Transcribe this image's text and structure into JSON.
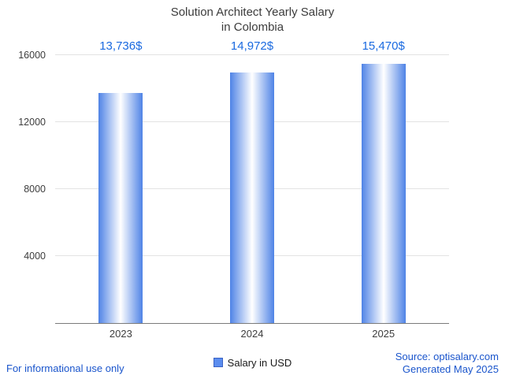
{
  "title": {
    "line1": "Solution Architect Yearly Salary",
    "line2": "in Colombia"
  },
  "chart_data": {
    "type": "bar",
    "title": "Solution Architect Yearly Salary in Colombia",
    "categories": [
      "2023",
      "2024",
      "2025"
    ],
    "values": [
      13736,
      14972,
      15470
    ],
    "value_labels": [
      "13,736$",
      "14,972$",
      "15,470$"
    ],
    "xlabel": "",
    "ylabel": "",
    "ylim": [
      0,
      16000
    ],
    "yticks": [
      4000,
      8000,
      12000,
      16000
    ],
    "grid": true,
    "legend": {
      "label": "Salary in USD",
      "position": "bottom"
    }
  },
  "footer": {
    "left": "For informational use only",
    "source": "Source: optisalary.com",
    "generated": "Generated May 2025"
  },
  "colors": {
    "bar_edge": "#4f83e6",
    "bar_center": "#ffffff",
    "annotation": "#1a6ae0",
    "link": "#1a55cc",
    "legend_swatch": "#5b8def",
    "grid": "#e3e3e3",
    "axis": "#7a7a7a",
    "text": "#3d3d3d"
  }
}
